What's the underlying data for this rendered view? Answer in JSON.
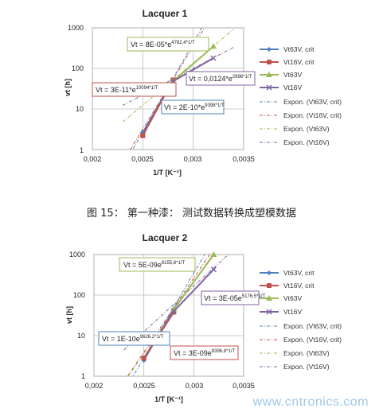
{
  "caption": "图 15：  第一种漆：  测试数据转换成塑模数据",
  "watermark": "www.cntronics.com",
  "legend_entries": [
    "Vt63V, crit",
    "Vt16V, crit",
    "Vt63V",
    "Vt16V",
    "Expon. (Vt63V, crit)",
    "Expon. (Vt16V, crit)",
    "Expon. (Vt63V)",
    "Expon. (Vt16V)"
  ],
  "colors": {
    "s1": "#4f81bd",
    "s2": "#c0504d",
    "s3": "#9bbb59",
    "s4": "#8064a2",
    "green_box": "#9bbb59",
    "purple_box": "#8064a2",
    "red_box": "#c0504d",
    "blue_box": "#4f81bd"
  },
  "chart_data": [
    {
      "type": "scatter",
      "title": "Lacquer 1",
      "xlabel": "1/T  [K⁻¹]",
      "ylabel": "vt [h]",
      "xlim": [
        0.002,
        0.0035
      ],
      "ylim": [
        1,
        1000
      ],
      "yscale": "log",
      "x_ticks": [
        "0,002",
        "0,0025",
        "0,003",
        "0,0035"
      ],
      "y_ticks": [
        "1",
        "10",
        "100",
        "1000"
      ],
      "grid": true,
      "legend": "right",
      "series": [
        {
          "name": "Vt63V, crit",
          "x": [
            0.0025,
            0.0028
          ],
          "y": [
            2.6,
            50
          ]
        },
        {
          "name": "Vt16V, crit",
          "x": [
            0.0025,
            0.0028
          ],
          "y": [
            2.2,
            52
          ]
        },
        {
          "name": "Vt63V",
          "x": [
            0.0028,
            0.0032
          ],
          "y": [
            48,
            350
          ]
        },
        {
          "name": "Vt16V",
          "x": [
            0.0028,
            0.0032
          ],
          "y": [
            48,
            180
          ]
        }
      ],
      "trendlines": [
        {
          "name": "Expon. (Vt63V, crit)",
          "a": 3e-11,
          "b": 10094
        },
        {
          "name": "Expon. (Vt16V, crit)",
          "a": 2e-10,
          "b": 9398
        },
        {
          "name": "Expon. (Vt63V)",
          "a": 8e-05,
          "b": 4782.4
        },
        {
          "name": "Expon. (Vt16V)",
          "a": 0.0124,
          "b": 2998
        }
      ],
      "annotations": [
        {
          "text": "Vt = 8E-05*e",
          "sup": "4782,4*1/T"
        },
        {
          "text": "Vt = 3E-11*e",
          "sup": "10094*1/T"
        },
        {
          "text": "Vt = 0,0124*e",
          "sup": "2998*1/T"
        },
        {
          "text": "Vt = 2E-10*e",
          "sup": "9398*1/T"
        }
      ]
    },
    {
      "type": "scatter",
      "title": "Lacquer 2",
      "xlabel": "1/T  [K⁻¹]",
      "ylabel": "vt [h]",
      "xlim": [
        0.002,
        0.0035
      ],
      "ylim": [
        1,
        1000
      ],
      "yscale": "log",
      "x_ticks": [
        "0,002",
        "0,0025",
        "0,003",
        "0,0035"
      ],
      "y_ticks": [
        "1",
        "10",
        "100",
        "1000"
      ],
      "grid": true,
      "legend": "right",
      "series": [
        {
          "name": "Vt63V, crit",
          "x": [
            0.0025,
            0.0028
          ],
          "y": [
            2.5,
            45
          ]
        },
        {
          "name": "Vt16V, crit",
          "x": [
            0.0025,
            0.0028
          ],
          "y": [
            2.8,
            38
          ]
        },
        {
          "name": "Vt63V",
          "x": [
            0.0028,
            0.0032
          ],
          "y": [
            45,
            1000
          ]
        },
        {
          "name": "Vt16V",
          "x": [
            0.0028,
            0.0032
          ],
          "y": [
            40,
            430
          ]
        }
      ],
      "trendlines": [
        {
          "name": "Expon. (Vt63V, crit)",
          "a": 1e-10,
          "b": 9626.2
        },
        {
          "name": "Expon. (Vt16V, crit)",
          "a": 3e-09,
          "b": 8396.8
        },
        {
          "name": "Expon. (Vt63V)",
          "a": 5e-09,
          "b": 8155.8
        },
        {
          "name": "Expon. (Vt16V)",
          "a": 3e-05,
          "b": 5176.5
        }
      ],
      "annotations": [
        {
          "text": "Vt = 5E-09e",
          "sup": "8155,8*1/T"
        },
        {
          "text": "Vt = 3E-05e",
          "sup": "5176,5*1/T"
        },
        {
          "text": "Vt = 1E-10e",
          "sup": "9626,2*1/T"
        },
        {
          "text": "Vt = 3E-09e",
          "sup": "8396,8*1/T"
        }
      ]
    }
  ]
}
